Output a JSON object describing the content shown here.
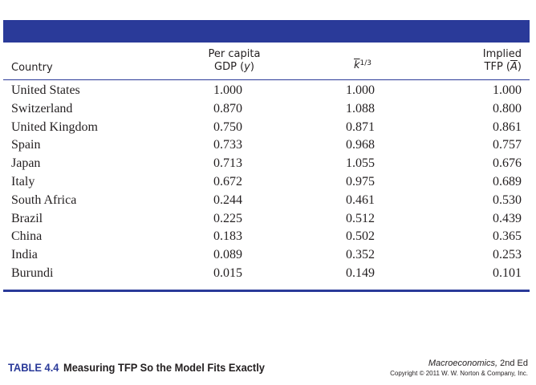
{
  "table": {
    "headers": {
      "country": "Country",
      "gdp_line1": "Per capita",
      "gdp_line2_prefix": "GDP (",
      "gdp_var": "y",
      "gdp_line2_suffix": ")",
      "k_base": "k",
      "k_exp": "1/3",
      "tfp_line1": "Implied",
      "tfp_line2_prefix": "TFP (",
      "tfp_var": "A",
      "tfp_line2_suffix": ")"
    },
    "rows": [
      {
        "country": "United States",
        "gdp": "1.000",
        "k": "1.000",
        "tfp": "1.000"
      },
      {
        "country": "Switzerland",
        "gdp": "0.870",
        "k": "1.088",
        "tfp": "0.800"
      },
      {
        "country": "United Kingdom",
        "gdp": "0.750",
        "k": "0.871",
        "tfp": "0.861"
      },
      {
        "country": "Spain",
        "gdp": "0.733",
        "k": "0.968",
        "tfp": "0.757"
      },
      {
        "country": "Japan",
        "gdp": "0.713",
        "k": "1.055",
        "tfp": "0.676"
      },
      {
        "country": "Italy",
        "gdp": "0.672",
        "k": "0.975",
        "tfp": "0.689"
      },
      {
        "country": "South Africa",
        "gdp": "0.244",
        "k": "0.461",
        "tfp": "0.530"
      },
      {
        "country": "Brazil",
        "gdp": "0.225",
        "k": "0.512",
        "tfp": "0.439"
      },
      {
        "country": "China",
        "gdp": "0.183",
        "k": "0.502",
        "tfp": "0.365"
      },
      {
        "country": "India",
        "gdp": "0.089",
        "k": "0.352",
        "tfp": "0.253"
      },
      {
        "country": "Burundi",
        "gdp": "0.015",
        "k": "0.149",
        "tfp": "0.101"
      }
    ]
  },
  "footer": {
    "table_label": "TABLE 4.4",
    "table_title": "Measuring TFP So the Model Fits Exactly",
    "book_title": "Macroeconomics,",
    "book_edition": "2nd Ed",
    "copyright": "Copyright © 2011 W. W. Norton & Company, Inc."
  },
  "colors": {
    "accent": "#2a3a99",
    "text": "#231f20"
  }
}
